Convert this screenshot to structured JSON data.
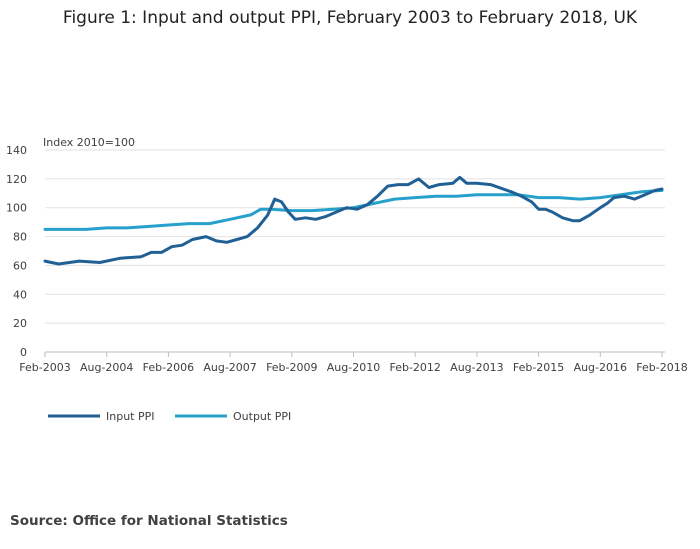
{
  "figure": {
    "title": "Figure 1: Input and output PPI, February 2003 to February 2018, UK",
    "source": "Source: Office for National Statistics"
  },
  "colors": {
    "input": "#206095",
    "output": "#27a0cc",
    "grid": "#e2e2e2",
    "axis": "#bebebe"
  },
  "chart_data": {
    "type": "line",
    "ylabel": "Index 2010=100",
    "ylim": [
      0,
      140
    ],
    "yticks": [
      0,
      20,
      40,
      60,
      80,
      100,
      120,
      140
    ],
    "xticks": [
      "Feb-2003",
      "Aug-2004",
      "Feb-2006",
      "Aug-2007",
      "Feb-2009",
      "Aug-2010",
      "Feb-2012",
      "Aug-2013",
      "Feb-2015",
      "Aug-2016",
      "Feb-2018"
    ],
    "x_start": "Feb-2003",
    "x_end": "Feb-2018",
    "legend_position": "bottom-left",
    "grid": true,
    "series": [
      {
        "name": "Input PPI",
        "color": "#206095",
        "points": [
          [
            "Feb-2003",
            63
          ],
          [
            "Jun-2003",
            61
          ],
          [
            "Dec-2003",
            63
          ],
          [
            "Jun-2004",
            62
          ],
          [
            "Dec-2004",
            65
          ],
          [
            "Jun-2005",
            66
          ],
          [
            "Sep-2005",
            69
          ],
          [
            "Dec-2005",
            69
          ],
          [
            "Mar-2006",
            73
          ],
          [
            "Jun-2006",
            74
          ],
          [
            "Sep-2006",
            78
          ],
          [
            "Jan-2007",
            80
          ],
          [
            "Apr-2007",
            77
          ],
          [
            "Jul-2007",
            76
          ],
          [
            "Oct-2007",
            78
          ],
          [
            "Jan-2008",
            80
          ],
          [
            "Apr-2008",
            86
          ],
          [
            "Jul-2008",
            95
          ],
          [
            "Sep-2008",
            106
          ],
          [
            "Nov-2008",
            104
          ],
          [
            "Jan-2009",
            97
          ],
          [
            "Mar-2009",
            92
          ],
          [
            "Jun-2009",
            93
          ],
          [
            "Sep-2009",
            92
          ],
          [
            "Dec-2009",
            94
          ],
          [
            "Mar-2010",
            97
          ],
          [
            "Jun-2010",
            100
          ],
          [
            "Sep-2010",
            99
          ],
          [
            "Dec-2010",
            102
          ],
          [
            "Mar-2011",
            108
          ],
          [
            "Jun-2011",
            115
          ],
          [
            "Sep-2011",
            116
          ],
          [
            "Dec-2011",
            116
          ],
          [
            "Mar-2012",
            120
          ],
          [
            "Jun-2012",
            114
          ],
          [
            "Sep-2012",
            116
          ],
          [
            "Jan-2013",
            117
          ],
          [
            "Mar-2013",
            121
          ],
          [
            "May-2013",
            117
          ],
          [
            "Aug-2013",
            117
          ],
          [
            "Dec-2013",
            116
          ],
          [
            "Jun-2014",
            111
          ],
          [
            "Sep-2014",
            108
          ],
          [
            "Dec-2014",
            104
          ],
          [
            "Feb-2015",
            99
          ],
          [
            "Apr-2015",
            99
          ],
          [
            "Jun-2015",
            97
          ],
          [
            "Sep-2015",
            93
          ],
          [
            "Dec-2015",
            91
          ],
          [
            "Feb-2016",
            91
          ],
          [
            "May-2016",
            95
          ],
          [
            "Aug-2016",
            100
          ],
          [
            "Oct-2016",
            103
          ],
          [
            "Dec-2016",
            107
          ],
          [
            "Mar-2017",
            108
          ],
          [
            "Jun-2017",
            106
          ],
          [
            "Sep-2017",
            109
          ],
          [
            "Dec-2017",
            112
          ],
          [
            "Feb-2018",
            113
          ]
        ]
      },
      {
        "name": "Output PPI",
        "color": "#27a0cc",
        "points": [
          [
            "Feb-2003",
            85
          ],
          [
            "Aug-2003",
            85
          ],
          [
            "Feb-2004",
            85
          ],
          [
            "Aug-2004",
            86
          ],
          [
            "Feb-2005",
            86
          ],
          [
            "Aug-2005",
            87
          ],
          [
            "Feb-2006",
            88
          ],
          [
            "Aug-2006",
            89
          ],
          [
            "Feb-2007",
            89
          ],
          [
            "Aug-2007",
            92
          ],
          [
            "Feb-2008",
            95
          ],
          [
            "May-2008",
            99
          ],
          [
            "Aug-2008",
            99
          ],
          [
            "Feb-2009",
            98
          ],
          [
            "Aug-2009",
            98
          ],
          [
            "Feb-2010",
            99
          ],
          [
            "Aug-2010",
            100
          ],
          [
            "Feb-2011",
            103
          ],
          [
            "Aug-2011",
            106
          ],
          [
            "Feb-2012",
            107
          ],
          [
            "Aug-2012",
            108
          ],
          [
            "Feb-2013",
            108
          ],
          [
            "Aug-2013",
            109
          ],
          [
            "Feb-2014",
            109
          ],
          [
            "Aug-2014",
            109
          ],
          [
            "Feb-2015",
            107
          ],
          [
            "Aug-2015",
            107
          ],
          [
            "Feb-2016",
            106
          ],
          [
            "Aug-2016",
            107
          ],
          [
            "Feb-2017",
            109
          ],
          [
            "Aug-2017",
            111
          ],
          [
            "Feb-2018",
            112
          ]
        ]
      }
    ]
  }
}
